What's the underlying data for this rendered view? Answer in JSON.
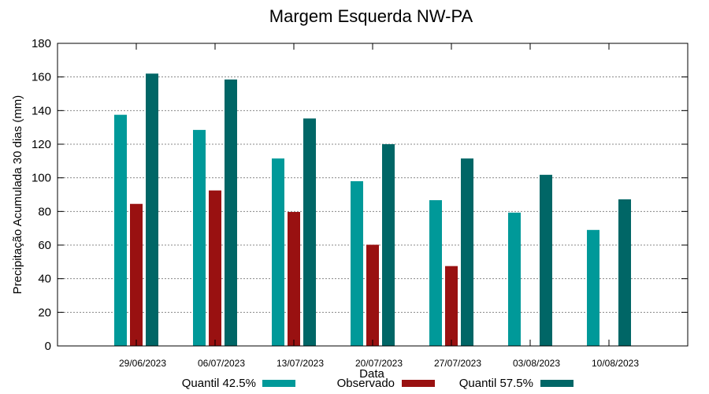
{
  "chart_data": {
    "type": "bar",
    "title": "Margem Esquerda NW-PA",
    "xlabel": "Data",
    "ylabel": "Precipitação Acumulada 30 dias (mm)",
    "ylim": [
      0,
      180
    ],
    "yticks": [
      0,
      20,
      40,
      60,
      80,
      100,
      120,
      140,
      160,
      180
    ],
    "grid": true,
    "legend_position": "bottom",
    "categories": [
      "29/06/2023",
      "06/07/2023",
      "13/07/2023",
      "20/07/2023",
      "27/07/2023",
      "03/08/2023",
      "10/08/2023"
    ],
    "series": [
      {
        "name": "Quantil 42.5%",
        "color": "#009999",
        "values": [
          137.5,
          128.5,
          111.5,
          98,
          86.7,
          79.3,
          69
        ]
      },
      {
        "name": "Observado",
        "color": "#991111",
        "values": [
          84.5,
          92.5,
          79.7,
          60.2,
          47.5,
          null,
          null
        ]
      },
      {
        "name": "Quantil 57.5%",
        "color": "#006666",
        "values": [
          162,
          158.5,
          135.3,
          120,
          111.5,
          101.8,
          87.2
        ]
      }
    ]
  }
}
